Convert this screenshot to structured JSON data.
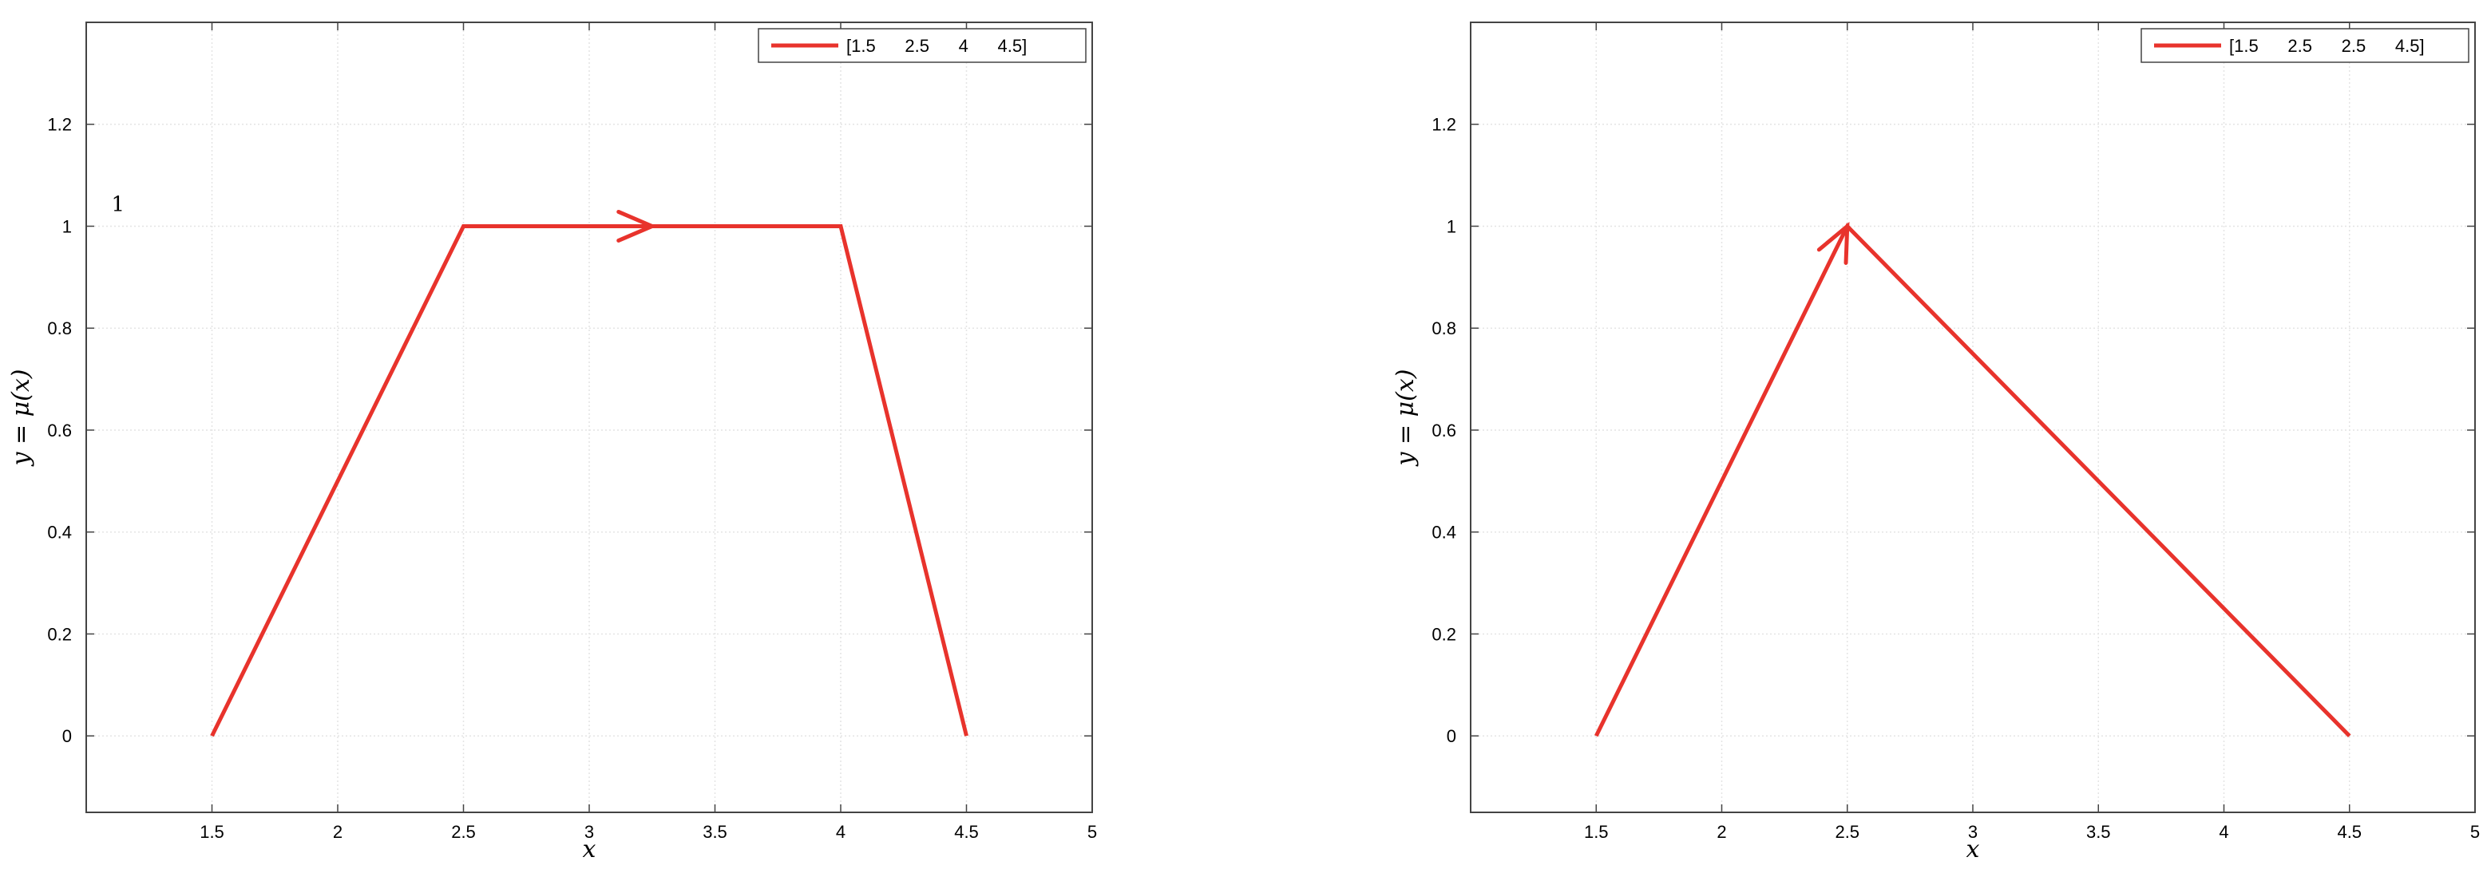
{
  "chart_data": [
    {
      "type": "line",
      "xlabel": "x",
      "ylabel": "y = μ(x)",
      "xlim": [
        1,
        5
      ],
      "ylim": [
        -0.15,
        1.4
      ],
      "xticks": [
        "1.5",
        "2",
        "2.5",
        "3",
        "3.5",
        "4",
        "4.5",
        "5"
      ],
      "xtick_values": [
        1.5,
        2,
        2.5,
        3,
        3.5,
        4,
        4.5,
        5
      ],
      "yticks": [
        "0",
        "0.2",
        "0.4",
        "0.6",
        "0.8",
        "1",
        "1.2"
      ],
      "ytick_values": [
        0,
        0.2,
        0.4,
        0.6,
        0.8,
        1,
        1.2
      ],
      "grid": true,
      "legend_position": "top-right",
      "series": [
        {
          "name": "[1.5      2.5      4      4.5]",
          "color": "#e8332c",
          "x": [
            1.5,
            2.5,
            4,
            4.5
          ],
          "y": [
            0,
            1,
            1,
            0
          ]
        }
      ],
      "annotations": [
        {
          "text": "1",
          "x": 1.1,
          "y": 1.03
        }
      ],
      "arrows": [
        {
          "x": 3.25,
          "y": 1,
          "direction": "right"
        }
      ]
    },
    {
      "type": "line",
      "xlabel": "x",
      "ylabel": "y = μ(x)",
      "xlim": [
        1,
        5
      ],
      "ylim": [
        -0.15,
        1.4
      ],
      "xticks": [
        "1.5",
        "2",
        "2.5",
        "3",
        "3.5",
        "4",
        "4.5",
        "5"
      ],
      "xtick_values": [
        1.5,
        2,
        2.5,
        3,
        3.5,
        4,
        4.5,
        5
      ],
      "yticks": [
        "0",
        "0.2",
        "0.4",
        "0.6",
        "0.8",
        "1",
        "1.2"
      ],
      "ytick_values": [
        0,
        0.2,
        0.4,
        0.6,
        0.8,
        1,
        1.2
      ],
      "grid": true,
      "legend_position": "top-right",
      "series": [
        {
          "name": "[1.5      2.5      2.5      4.5]",
          "color": "#e8332c",
          "x": [
            1.5,
            2.5,
            4.5
          ],
          "y": [
            0,
            1,
            0
          ]
        }
      ],
      "annotations": [],
      "arrows": [
        {
          "x": 2.5,
          "y": 1,
          "direction": "up-right"
        }
      ]
    }
  ]
}
